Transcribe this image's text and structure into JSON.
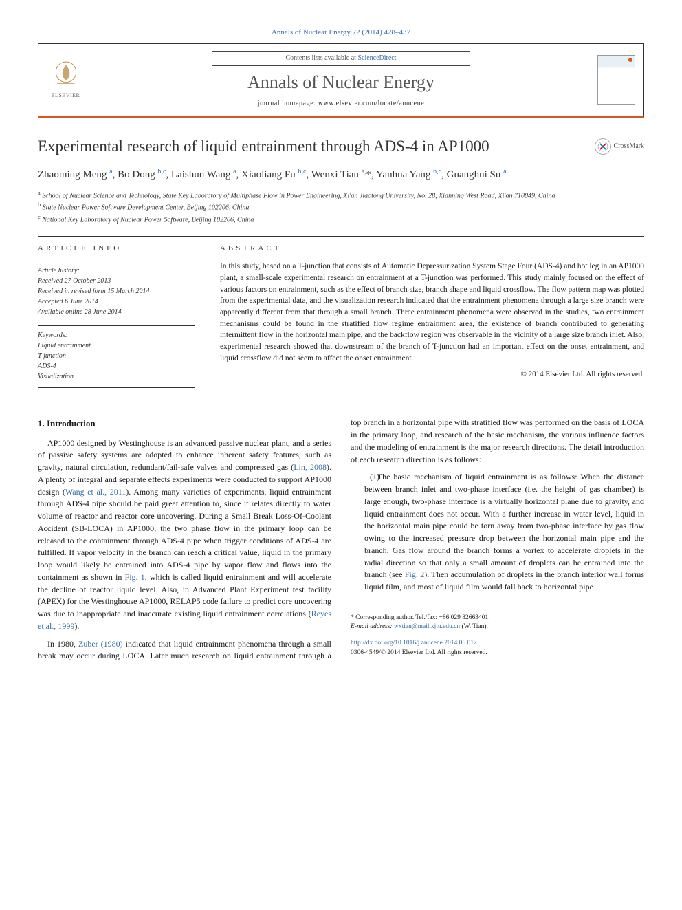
{
  "top_citation": "Annals of Nuclear Energy 72 (2014) 428–437",
  "header": {
    "contents_prefix": "Contents lists available at ",
    "contents_link": "ScienceDirect",
    "journal": "Annals of Nuclear Energy",
    "homepage_prefix": "journal homepage: ",
    "homepage_url": "www.elsevier.com/locate/anucene",
    "publisher": "ELSEVIER"
  },
  "crossmark_label": "CrossMark",
  "title": "Experimental research of liquid entrainment through ADS-4 in AP1000",
  "authors_html": "Zhaoming Meng <sup>a</sup>, Bo Dong <sup>b,c</sup>, Laishun Wang <sup>a</sup>, Xiaoliang Fu <sup>b,c</sup>, Wenxi Tian <sup>a,</sup><span class='star'>*</span>, Yanhua Yang <sup>b,c</sup>, Guanghui Su <sup>a</sup>",
  "affiliations": [
    "a School of Nuclear Science and Technology, State Key Laboratory of Multiphase Flow in Power Engineering, Xi'an Jiaotong University, No. 28, Xianning West Road, Xi'an 710049, China",
    "b State Nuclear Power Software Development Center, Beijing 102206, China",
    "c National Key Laboratory of Nuclear Power Software, Beijing 102206, China"
  ],
  "article_info": {
    "heading": "ARTICLE INFO",
    "history_label": "Article history:",
    "history": [
      "Received 27 October 2013",
      "Received in revised form 15 March 2014",
      "Accepted 6 June 2014",
      "Available online 28 June 2014"
    ],
    "keywords_label": "Keywords:",
    "keywords": [
      "Liquid entrainment",
      "T-junction",
      "ADS-4",
      "Visualization"
    ]
  },
  "abstract": {
    "heading": "ABSTRACT",
    "text": "In this study, based on a T-junction that consists of Automatic Depressurization System Stage Four (ADS-4) and hot leg in an AP1000 plant, a small-scale experimental research on entrainment at a T-junction was performed. This study mainly focused on the effect of various factors on entrainment, such as the effect of branch size, branch shape and liquid crossflow. The flow pattern map was plotted from the experimental data, and the visualization research indicated that the entrainment phenomena through a large size branch were apparently different from that through a small branch. Three entrainment phenomena were observed in the studies, two entrainment mechanisms could be found in the stratified flow regime entrainment area, the existence of branch contributed to generating intermittent flow in the horizontal main pipe, and the backflow region was observable in the vicinity of a large size branch inlet. Also, experimental research showed that downstream of the branch of T-junction had an important effect on the onset entrainment, and liquid crossflow did not seem to affect the onset entrainment.",
    "copyright": "© 2014 Elsevier Ltd. All rights reserved."
  },
  "body": {
    "intro_heading": "1. Introduction",
    "p1_a": "AP1000 designed by Westinghouse is an advanced passive nuclear plant, and a series of passive safety systems are adopted to enhance inherent safety features, such as gravity, natural circulation, redundant/fail-safe valves and compressed gas (",
    "p1_link1": "Lin, 2008",
    "p1_b": "). A plenty of integral and separate effects experiments were conducted to support AP1000 design (",
    "p1_link2": "Wang et al., 2011",
    "p1_c": "). Among many varieties of experiments, liquid entrainment through ADS-4 pipe should be paid great attention to, since it relates directly to water volume of reactor and reactor core uncovering. During a Small Break Loss-Of-Coolant Accident (SB-LOCA) in AP1000, the two phase flow in the primary loop can be released to the containment through ADS-4 pipe when trigger conditions of ADS-4 are fulfilled. If vapor velocity in the branch can reach a critical value, liquid in the primary loop would likely be entrained into ADS-4 pipe by vapor flow and flows into the containment as shown in ",
    "p1_link3": "Fig. 1",
    "p1_d": ", which is called liquid entrainment and will accelerate the decline of reactor liquid level. Also, in Advanced Plant Experiment test facility (APEX) for the Westinghouse AP1000, RELAP5 code failure to predict core uncovering was due to inappropriate and inaccurate existing liquid entrainment correlations (",
    "p1_link4": "Reyes et al., 1999",
    "p1_e": ").",
    "p2_a": "In 1980, ",
    "p2_link1": "Zuber (1980)",
    "p2_b": " indicated that liquid entrainment phenomena through a small break may occur during LOCA. Later much research on liquid entrainment through a top branch in a horizontal pipe with stratified flow was performed on the basis of LOCA in the primary loop, and research of the basic mechanism, the various influence factors and the modeling of entrainment is the major research directions. The detail introduction of each research direction is as follows:",
    "li1_num": "(1)",
    "li1_a": " The basic mechanism of liquid entrainment is as follows: When the distance between branch inlet and two-phase interface (i.e. the height of gas chamber) is large enough, two-phase interface is a virtually horizontal plane due to gravity, and liquid entrainment does not occur. With a further increase in water level, liquid in the horizontal main pipe could be torn away from two-phase interface by gas flow owing to the increased pressure drop between the horizontal main pipe and the branch. Gas flow around the branch forms a vortex to accelerate droplets in the radial direction so that only a small amount of droplets can be entrained into the branch (see ",
    "li1_link": "Fig. 2",
    "li1_b": "). Then accumulation of droplets in the branch interior wall forms liquid film, and most of liquid film would fall back to horizontal pipe"
  },
  "footnote": {
    "corr": "* Corresponding author. Tel./fax: +86 029 82663401.",
    "email_label": "E-mail address: ",
    "email": "wxtian@mail.xjtu.edu.cn",
    "email_suffix": " (W. Tian)."
  },
  "doi": {
    "url": "http://dx.doi.org/10.1016/j.anucene.2014.06.012",
    "issn_line": "0306-4549/© 2014 Elsevier Ltd. All rights reserved."
  },
  "colors": {
    "link": "#3a6ea5",
    "accent": "#d65a1f",
    "text": "#1a1a1a"
  }
}
